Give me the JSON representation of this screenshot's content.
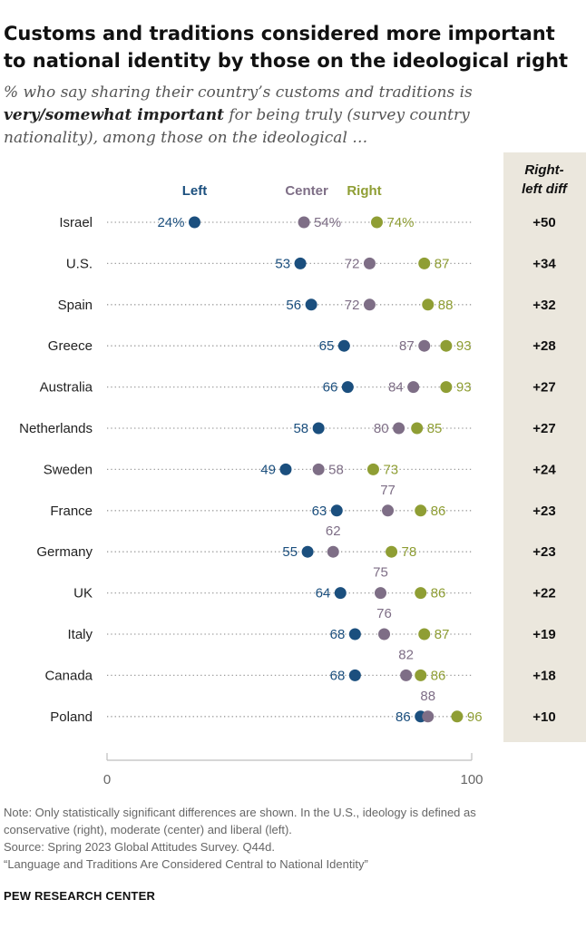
{
  "title_line1": "Customs and traditions considered more important",
  "title_line2": "to national identity by those on the ideological right",
  "subtitle_pre": "% who say sharing their country’s customs and traditions is",
  "subtitle_bold": "very/somewhat important",
  "subtitle_post": "for being truly (survey country nationality), among those on the ideological …",
  "colors": {
    "left": "#1b4f7e",
    "center": "#7e6e86",
    "right": "#8f9e34",
    "diff_bg": "#ebe7dd",
    "dots": "#9a9a9a"
  },
  "chart_data": {
    "type": "dot",
    "series": [
      {
        "name": "Left",
        "color": "#1b4f7e"
      },
      {
        "name": "Center",
        "color": "#7e6e86"
      },
      {
        "name": "Right",
        "color": "#8f9e34"
      }
    ],
    "diff_header_line1": "Right-",
    "diff_header_line2": "left diff",
    "xlim": [
      0,
      100
    ],
    "x_ticks": [
      "0",
      "100"
    ],
    "rows": [
      {
        "country": "Israel",
        "left": 24,
        "center": 54,
        "right": 74,
        "diff": "+50",
        "left_label": "24%",
        "center_label": "54%",
        "right_label": "74%",
        "center_pos": "right"
      },
      {
        "country": "U.S.",
        "left": 53,
        "center": 72,
        "right": 87,
        "diff": "+34",
        "left_label": "53",
        "center_label": "72",
        "right_label": "87",
        "center_pos": "left"
      },
      {
        "country": "Spain",
        "left": 56,
        "center": 72,
        "right": 88,
        "diff": "+32",
        "left_label": "56",
        "center_label": "72",
        "right_label": "88",
        "center_pos": "left"
      },
      {
        "country": "Greece",
        "left": 65,
        "center": 87,
        "right": 93,
        "diff": "+28",
        "left_label": "65",
        "center_label": "87",
        "right_label": "93",
        "center_pos": "left"
      },
      {
        "country": "Australia",
        "left": 66,
        "center": 84,
        "right": 93,
        "diff": "+27",
        "left_label": "66",
        "center_label": "84",
        "right_label": "93",
        "center_pos": "left"
      },
      {
        "country": "Netherlands",
        "left": 58,
        "center": 80,
        "right": 85,
        "diff": "+27",
        "left_label": "58",
        "center_label": "80",
        "right_label": "85",
        "center_pos": "left"
      },
      {
        "country": "Sweden",
        "left": 49,
        "center": 58,
        "right": 73,
        "diff": "+24",
        "left_label": "49",
        "center_label": "58",
        "right_label": "73",
        "center_pos": "right"
      },
      {
        "country": "France",
        "left": 63,
        "center": 77,
        "right": 86,
        "diff": "+23",
        "left_label": "63",
        "center_label": "77",
        "right_label": "86",
        "center_pos": "above"
      },
      {
        "country": "Germany",
        "left": 55,
        "center": 62,
        "right": 78,
        "diff": "+23",
        "left_label": "55",
        "center_label": "62",
        "right_label": "78",
        "center_pos": "above"
      },
      {
        "country": "UK",
        "left": 64,
        "center": 75,
        "right": 86,
        "diff": "+22",
        "left_label": "64",
        "center_label": "75",
        "right_label": "86",
        "center_pos": "above"
      },
      {
        "country": "Italy",
        "left": 68,
        "center": 76,
        "right": 87,
        "diff": "+19",
        "left_label": "68",
        "center_label": "76",
        "right_label": "87",
        "center_pos": "above"
      },
      {
        "country": "Canada",
        "left": 68,
        "center": 82,
        "right": 86,
        "diff": "+18",
        "left_label": "68",
        "center_label": "82",
        "right_label": "86",
        "center_pos": "above"
      },
      {
        "country": "Poland",
        "left": 86,
        "center": 88,
        "right": 96,
        "diff": "+10",
        "left_label": "86",
        "center_label": "88",
        "right_label": "96",
        "center_pos": "above"
      }
    ]
  },
  "notes": [
    "Note: Only statistically significant differences are shown. In the U.S., ideology is defined as",
    "conservative (right), moderate (center) and liberal (left).",
    "Source: Spring 2023 Global Attitudes Survey. Q44d.",
    "“Language and Traditions Are Considered Central to National Identity”"
  ],
  "org": "PEW RESEARCH CENTER"
}
